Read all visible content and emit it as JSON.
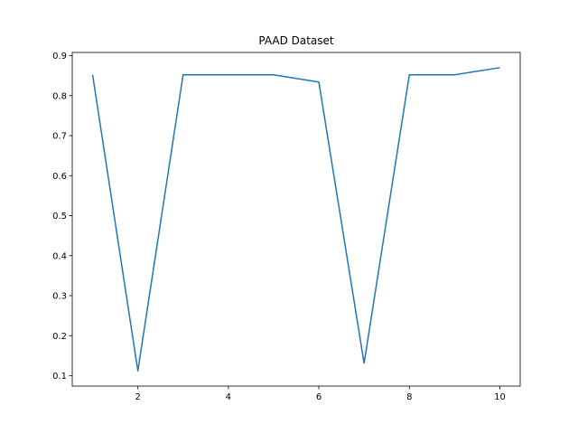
{
  "chart_data": {
    "type": "line",
    "title": "PAAD Dataset",
    "xlabel": "",
    "ylabel": "",
    "x": [
      1,
      2,
      3,
      4,
      5,
      6,
      7,
      8,
      9,
      10
    ],
    "series": [
      {
        "values": [
          0.852,
          0.112,
          0.852,
          0.852,
          0.852,
          0.834,
          0.131,
          0.852,
          0.852,
          0.87
        ],
        "color": "#1f77b4"
      }
    ],
    "xlim": [
      0.55,
      10.45
    ],
    "ylim": [
      0.074,
      0.908
    ],
    "xticks": [
      2,
      4,
      6,
      8,
      10
    ],
    "xtick_labels": [
      "2",
      "4",
      "6",
      "8",
      "10"
    ],
    "yticks": [
      0.1,
      0.2,
      0.3,
      0.4,
      0.5,
      0.6,
      0.7,
      0.8,
      0.9
    ],
    "ytick_labels": [
      "0.1",
      "0.2",
      "0.3",
      "0.4",
      "0.5",
      "0.6",
      "0.7",
      "0.8",
      "0.9"
    ],
    "grid": false,
    "legend": "none"
  }
}
